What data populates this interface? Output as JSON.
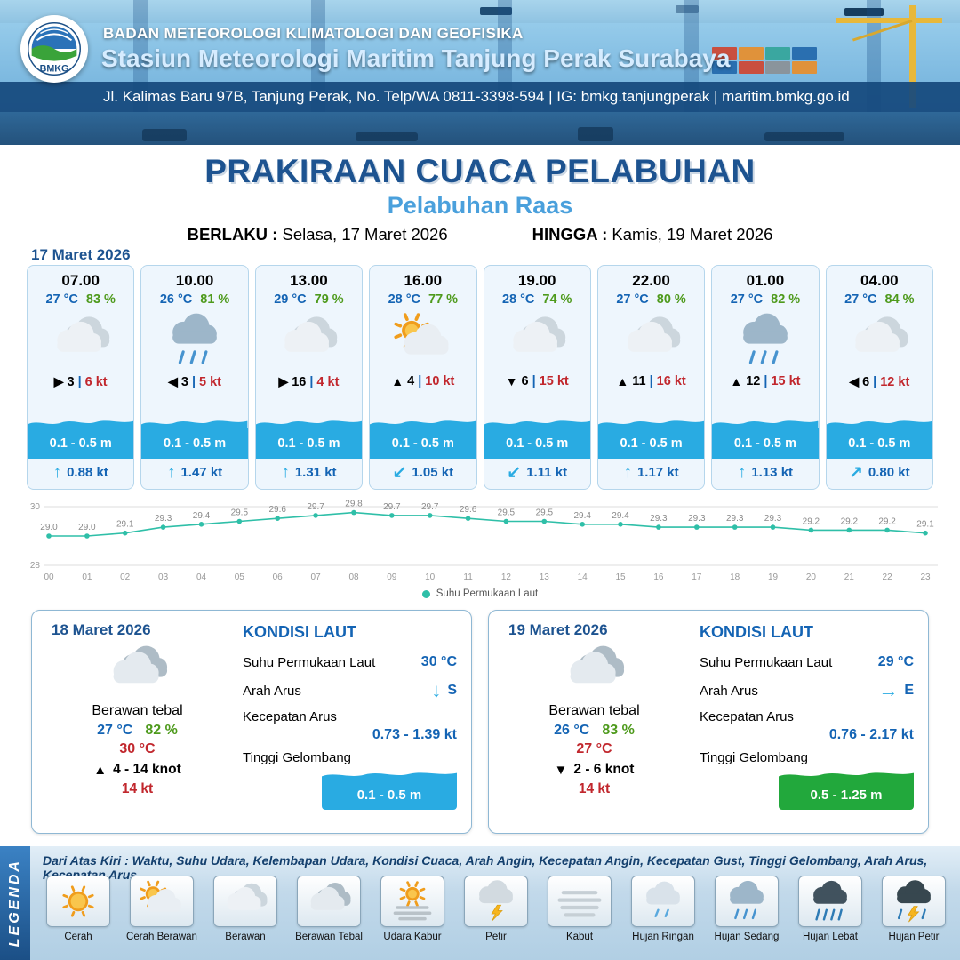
{
  "header": {
    "org": "BADAN METEOROLOGI KLIMATOLOGI DAN GEOFISIKA",
    "station": "Stasiun Meteorologi Maritim Tanjung Perak Surabaya",
    "address": "Jl. Kalimas Baru 97B, Tanjung Perak, No. Telp/WA 0811-3398-594 | IG: bmkg.tanjungperak | maritim.bmkg.go.id",
    "logo_text": "BMKG"
  },
  "title": {
    "main": "PRAKIRAAN CUACA PELABUHAN",
    "subtitle": "Pelabuhan Raas",
    "berlaku_label": "BERLAKU :",
    "berlaku_value": "Selasa, 17 Maret 2026",
    "hingga_label": "HINGGA :",
    "hingga_value": "Kamis, 19 Maret 2026"
  },
  "colors": {
    "accent_blue": "#1d5390",
    "temp_blue": "#1464b4",
    "humidity_green": "#4e9a1c",
    "gust_red": "#c1272d",
    "wave_cyan": "#29abe2",
    "wave_green": "#22a83c"
  },
  "day1": {
    "date": "17 Maret 2026",
    "cards": [
      {
        "time": "07.00",
        "temp": "27 °C",
        "humidity": "83 %",
        "weather": "berawan",
        "wind_arrow": "▶",
        "wind_speed": "3",
        "gust": "6 kt",
        "wave": "0.1 - 0.5 m",
        "current_arrow": "↑",
        "current": "0.88 kt"
      },
      {
        "time": "10.00",
        "temp": "26 °C",
        "humidity": "81 %",
        "weather": "hujan-sedang",
        "wind_arrow": "◀",
        "wind_speed": "3",
        "gust": "5 kt",
        "wave": "0.1 - 0.5 m",
        "current_arrow": "↑",
        "current": "1.47 kt"
      },
      {
        "time": "13.00",
        "temp": "29 °C",
        "humidity": "79 %",
        "weather": "berawan",
        "wind_arrow": "▶",
        "wind_speed": "16",
        "gust": "4 kt",
        "wave": "0.1 - 0.5 m",
        "current_arrow": "↑",
        "current": "1.31 kt"
      },
      {
        "time": "16.00",
        "temp": "28 °C",
        "humidity": "77 %",
        "weather": "cerah-berawan",
        "wind_arrow": "▲",
        "wind_speed": "4",
        "gust": "10 kt",
        "wave": "0.1 - 0.5 m",
        "current_arrow": "↙",
        "current": "1.05 kt"
      },
      {
        "time": "19.00",
        "temp": "28 °C",
        "humidity": "74 %",
        "weather": "berawan",
        "wind_arrow": "▼",
        "wind_speed": "6",
        "gust": "15 kt",
        "wave": "0.1 - 0.5 m",
        "current_arrow": "↙",
        "current": "1.11 kt"
      },
      {
        "time": "22.00",
        "temp": "27 °C",
        "humidity": "80 %",
        "weather": "berawan",
        "wind_arrow": "▲",
        "wind_speed": "11",
        "gust": "16 kt",
        "wave": "0.1 - 0.5 m",
        "current_arrow": "↑",
        "current": "1.17 kt"
      },
      {
        "time": "01.00",
        "temp": "27 °C",
        "humidity": "82 %",
        "weather": "hujan-sedang",
        "wind_arrow": "▲",
        "wind_speed": "12",
        "gust": "15 kt",
        "wave": "0.1 - 0.5 m",
        "current_arrow": "↑",
        "current": "1.13 kt"
      },
      {
        "time": "04.00",
        "temp": "27 °C",
        "humidity": "84 %",
        "weather": "berawan",
        "wind_arrow": "◀",
        "wind_speed": "6",
        "gust": "12 kt",
        "wave": "0.1 - 0.5 m",
        "current_arrow": "↗",
        "current": "0.80 kt"
      }
    ]
  },
  "chart_data": {
    "type": "line",
    "legend": "Suhu Permukaan Laut",
    "x": [
      "00",
      "01",
      "02",
      "03",
      "04",
      "05",
      "06",
      "07",
      "08",
      "09",
      "10",
      "11",
      "12",
      "13",
      "14",
      "15",
      "16",
      "17",
      "18",
      "19",
      "20",
      "21",
      "22",
      "23"
    ],
    "values": [
      29.0,
      29.0,
      29.1,
      29.3,
      29.4,
      29.5,
      29.6,
      29.7,
      29.8,
      29.7,
      29.7,
      29.6,
      29.5,
      29.5,
      29.4,
      29.4,
      29.3,
      29.3,
      29.3,
      29.3,
      29.2,
      29.2,
      29.2,
      29.1
    ],
    "ylim": [
      28,
      30
    ],
    "line_color": "#2fbfa8"
  },
  "day_cards": [
    {
      "date": "18 Maret 2026",
      "weather": "berawan-tebal",
      "weather_label": "Berawan tebal",
      "temp": "27 °C",
      "humidity": "82 %",
      "temp_max": "30 °C",
      "wind_arrow": "▲",
      "wind_range": "4  - 14 knot",
      "gust": "14 kt",
      "sea": {
        "heading": "KONDISI LAUT",
        "sst_label": "Suhu Permukaan Laut",
        "sst": "30 °C",
        "arus_label": "Arah Arus",
        "arus_arrow": "↓",
        "arus_dir": "S",
        "kecepatan_label": "Kecepatan Arus",
        "kecepatan": "0.73  - 1.39 kt",
        "gelombang_label": "Tinggi Gelombang",
        "gelombang": "0.1 - 0.5 m",
        "wave_color": "#29abe2"
      }
    },
    {
      "date": "19 Maret 2026",
      "weather": "berawan-tebal",
      "weather_label": "Berawan tebal",
      "temp": "26 °C",
      "humidity": "83 %",
      "temp_max": "27 °C",
      "wind_arrow": "▼",
      "wind_range": "2  - 6 knot",
      "gust": "14 kt",
      "sea": {
        "heading": "KONDISI LAUT",
        "sst_label": "Suhu Permukaan Laut",
        "sst": "29 °C",
        "arus_label": "Arah Arus",
        "arus_arrow": "→",
        "arus_dir": "E",
        "kecepatan_label": "Kecepatan Arus",
        "kecepatan": "0.76 - 2.17 kt",
        "gelombang_label": "Tinggi Gelombang",
        "gelombang": "0.5 - 1.25 m",
        "wave_color": "#22a83c"
      }
    }
  ],
  "legend": {
    "title": "LEGENDA",
    "description": "Dari Atas Kiri : Waktu, Suhu Udara, Kelembapan Udara, Kondisi Cuaca, Arah Angin, Kecepatan Angin, Kecepatan Gust, Tinggi Gelombang, Arah Arus, Kecepatan Arus",
    "items": [
      {
        "icon": "cerah",
        "label": "Cerah"
      },
      {
        "icon": "cerah-berawan",
        "label": "Cerah Berawan"
      },
      {
        "icon": "berawan",
        "label": "Berawan"
      },
      {
        "icon": "berawan-tebal",
        "label": "Berawan Tebal"
      },
      {
        "icon": "udara-kabur",
        "label": "Udara Kabur"
      },
      {
        "icon": "petir",
        "label": "Petir"
      },
      {
        "icon": "kabut",
        "label": "Kabut"
      },
      {
        "icon": "hujan-ringan",
        "label": "Hujan Ringan"
      },
      {
        "icon": "hujan-sedang",
        "label": "Hujan Sedang"
      },
      {
        "icon": "hujan-lebat",
        "label": "Hujan Lebat"
      },
      {
        "icon": "hujan-petir",
        "label": "Hujan Petir"
      }
    ]
  }
}
